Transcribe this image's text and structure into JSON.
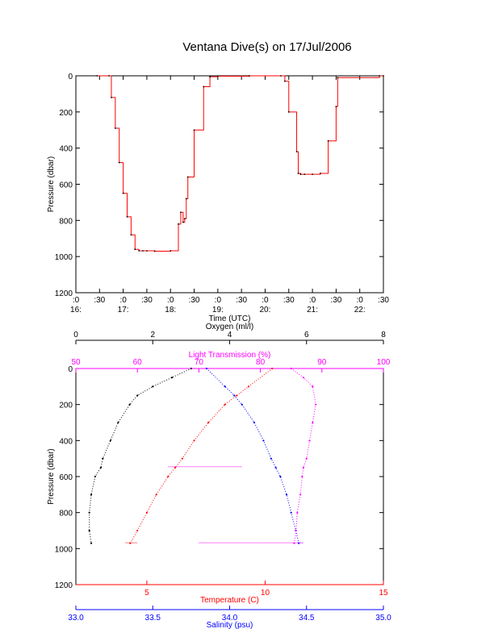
{
  "title": "Ventana Dive(s) on 17/Jul/2006",
  "colors": {
    "axis": "#000000",
    "pressure": "#000000",
    "pressure_trace": "#ff0000",
    "temperature": "#ff0000",
    "salinity": "#0000ff",
    "oxygen": "#000000",
    "light": "#ff00ff"
  },
  "chart_data": [
    {
      "type": "line",
      "xlabel": "Time (UTC)",
      "ylabel": "Pressure (dbar)",
      "ylim": [
        1200,
        0
      ],
      "y_ticks": [
        "0",
        "200",
        "400",
        "600",
        "800",
        "1000",
        "1200"
      ],
      "x_tick_labels": [
        {
          "top": ":0",
          "bottom": "16:"
        },
        {
          "top": ":30",
          "bottom": ""
        },
        {
          "top": ":0",
          "bottom": "17:"
        },
        {
          "top": ":30",
          "bottom": ""
        },
        {
          "top": ":0",
          "bottom": "18:"
        },
        {
          "top": ":30",
          "bottom": ""
        },
        {
          "top": ":0",
          "bottom": "19:"
        },
        {
          "top": ":30",
          "bottom": ""
        },
        {
          "top": ":0",
          "bottom": "20:"
        },
        {
          "top": ":30",
          "bottom": ""
        },
        {
          "top": ":0",
          "bottom": "21:"
        },
        {
          "top": ":30",
          "bottom": ""
        },
        {
          "top": ":0",
          "bottom": "22:"
        },
        {
          "top": ":30",
          "bottom": ""
        }
      ],
      "xlim_minutes_after_16": [
        0,
        390
      ],
      "series": [
        {
          "x_minutes_after_16": [
            27,
            42,
            45,
            50,
            55,
            60,
            65,
            70,
            75,
            80,
            85,
            90,
            100,
            120,
            130,
            133,
            136,
            138,
            140,
            142,
            150,
            162,
            170,
            180,
            220,
            260,
            265,
            270,
            280,
            282,
            285,
            290,
            300,
            310,
            320,
            330,
            332,
            385,
            390
          ],
          "y_dbar": [
            0,
            0,
            120,
            290,
            480,
            650,
            780,
            880,
            960,
            968,
            968,
            968,
            970,
            968,
            820,
            755,
            810,
            790,
            680,
            560,
            300,
            60,
            5,
            2,
            0,
            0,
            30,
            200,
            420,
            540,
            545,
            545,
            545,
            540,
            360,
            170,
            10,
            0,
            0
          ]
        }
      ]
    },
    {
      "type": "scatter",
      "ylabel": "Pressure (dbar)",
      "ylim": [
        1200,
        0
      ],
      "y_ticks": [
        "0",
        "200",
        "400",
        "600",
        "800",
        "1000",
        "1200"
      ],
      "axes": {
        "oxygen": {
          "label": "Oxygen (ml/l)",
          "range": [
            0,
            8
          ],
          "ticks": [
            "0",
            "2",
            "4",
            "6",
            "8"
          ]
        },
        "light": {
          "label": "Light Transmission (%)",
          "range": [
            50,
            100
          ],
          "ticks": [
            "50",
            "60",
            "70",
            "80",
            "90",
            "100"
          ]
        },
        "temperature": {
          "label": "Temperature (C)",
          "range": [
            2.0,
            15.0
          ],
          "ticks": [
            "5",
            "10",
            "15"
          ],
          "tick_values": [
            5,
            10,
            15
          ]
        },
        "salinity": {
          "label": "Salinity (psu)",
          "range": [
            33.0,
            35.0
          ],
          "ticks": [
            "33.0",
            "33.5",
            "34.0",
            "34.5",
            "35.0"
          ]
        }
      },
      "series": [
        {
          "key": "oxygen",
          "pressure": [
            0,
            50,
            100,
            150,
            200,
            300,
            400,
            500,
            550,
            600,
            700,
            800,
            900,
            970
          ],
          "values": [
            3.0,
            2.5,
            2.0,
            1.6,
            1.4,
            1.1,
            0.9,
            0.7,
            0.65,
            0.5,
            0.4,
            0.35,
            0.35,
            0.4
          ]
        },
        {
          "key": "temperature",
          "pressure": [
            0,
            100,
            150,
            200,
            300,
            400,
            500,
            550,
            600,
            700,
            800,
            900,
            970
          ],
          "values": [
            10.3,
            9.3,
            8.8,
            8.3,
            7.6,
            7.0,
            6.5,
            6.2,
            5.9,
            5.4,
            5.0,
            4.6,
            4.3
          ]
        },
        {
          "key": "salinity",
          "pressure": [
            0,
            100,
            150,
            200,
            300,
            400,
            500,
            550,
            600,
            700,
            800,
            900,
            970
          ],
          "values": [
            33.85,
            33.97,
            34.03,
            34.08,
            34.16,
            34.22,
            34.27,
            34.3,
            34.33,
            34.37,
            34.4,
            34.43,
            34.45
          ]
        },
        {
          "key": "light",
          "pressure": [
            0,
            50,
            100,
            200,
            300,
            400,
            500,
            550,
            600,
            700,
            800,
            900,
            970
          ],
          "values": [
            85.0,
            87.0,
            88.5,
            89.0,
            88.5,
            88.0,
            87.5,
            87.0,
            86.8,
            86.5,
            86.0,
            85.8,
            85.5
          ]
        }
      ],
      "horizontal_segments": [
        {
          "key": "light",
          "pressure": 545,
          "from": 65,
          "to": 77
        },
        {
          "key": "temperature",
          "pressure": 968,
          "from": 4.1,
          "to": 4.6
        },
        {
          "key": "salinity",
          "pressure": 968,
          "from": 34.44,
          "to": 34.48
        },
        {
          "key": "light",
          "pressure": 968,
          "from": 70,
          "to": 87
        }
      ]
    }
  ]
}
